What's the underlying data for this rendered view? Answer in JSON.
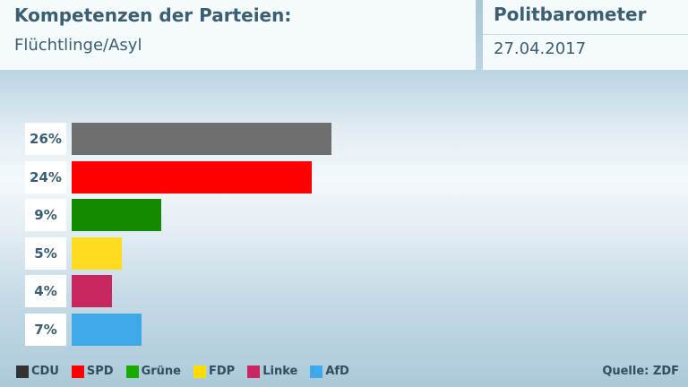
{
  "header": {
    "title": "Kompetenzen der Parteien:",
    "subtitle": "Flüchtlinge/Asyl",
    "series_title": "Politbarometer",
    "date": "27.04.2017"
  },
  "chart_data": {
    "type": "bar",
    "orientation": "horizontal",
    "title": "Kompetenzen der Parteien:",
    "subtitle": "Flüchtlinge/Asyl",
    "categories": [
      "CDU",
      "SPD",
      "Grüne",
      "FDP",
      "Linke",
      "AfD"
    ],
    "values": [
      26,
      24,
      9,
      5,
      4,
      7
    ],
    "labels": [
      "26%",
      "24%",
      "9%",
      "5%",
      "4%",
      "7%"
    ],
    "unit": "%",
    "colors": [
      "#6e6e6e",
      "#ff0000",
      "#138a00",
      "#ffdc1e",
      "#c8285f",
      "#3fa8e6"
    ],
    "legend": [
      {
        "label": "CDU",
        "color": "#333333"
      },
      {
        "label": "SPD",
        "color": "#ff0000"
      },
      {
        "label": "Grüne",
        "color": "#1aaa00"
      },
      {
        "label": "FDP",
        "color": "#ffdc00"
      },
      {
        "label": "Linke",
        "color": "#c8285f"
      },
      {
        "label": "AfD",
        "color": "#3fa8e6"
      }
    ],
    "legend_position": "bottom-left",
    "grid": false
  },
  "source": "Quelle: ZDF"
}
